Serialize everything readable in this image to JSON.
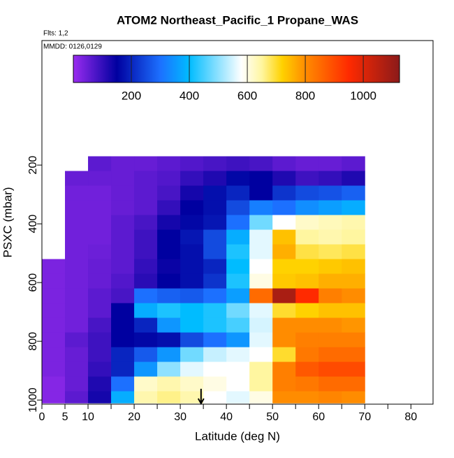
{
  "chart_data": {
    "type": "heatmap",
    "title": "ATOM2 Northeast_Pacific_1 Propane_WAS",
    "subtitle": "Flts: 1,2",
    "annotation": "MMDD: 0126,0129",
    "x_label": "Latitude (deg N)",
    "y_label": "PSXC (mbar)",
    "xlim": [
      0,
      84.8
    ],
    "ylim": [
      1014,
      -224
    ],
    "xticks": [
      0,
      5,
      10,
      20,
      30,
      40,
      50,
      60,
      70,
      80
    ],
    "xminor": [
      15,
      25,
      35,
      45,
      55,
      65,
      75
    ],
    "yticks": [
      200,
      400,
      600,
      800,
      1000
    ],
    "colorbar": {
      "lim": [
        0,
        1125
      ],
      "ticks": [
        200,
        400,
        600,
        800,
        1000
      ]
    },
    "colormap": [
      [
        0,
        "#9a2cf0"
      ],
      [
        150,
        "#0000a0"
      ],
      [
        300,
        "#1c70ff"
      ],
      [
        400,
        "#00bcff"
      ],
      [
        580,
        "#ffffff"
      ],
      [
        650,
        "#fff6a0"
      ],
      [
        720,
        "#ffd200"
      ],
      [
        800,
        "#ff8c00"
      ],
      [
        950,
        "#ff2a00"
      ],
      [
        1125,
        "#8b1a1a"
      ]
    ],
    "lat_edges": [
      0,
      5,
      10,
      15,
      20,
      25,
      30,
      35,
      40,
      45,
      50,
      55,
      60,
      65,
      70
    ],
    "pressure_edges": [
      170,
      220,
      270,
      320,
      370,
      420,
      470,
      520,
      570,
      620,
      670,
      720,
      770,
      820,
      870,
      920,
      970,
      1010
    ],
    "values": [
      [
        null,
        null,
        60,
        50,
        50,
        60,
        70,
        80,
        90,
        80,
        60,
        50,
        50,
        60
      ],
      [
        null,
        50,
        50,
        50,
        60,
        70,
        100,
        120,
        160,
        150,
        120,
        90,
        100,
        120
      ],
      [
        null,
        40,
        40,
        50,
        60,
        80,
        130,
        170,
        200,
        150,
        220,
        250,
        260,
        280
      ],
      [
        null,
        40,
        40,
        50,
        60,
        100,
        150,
        170,
        250,
        320,
        300,
        340,
        360,
        380
      ],
      [
        null,
        40,
        40,
        60,
        80,
        130,
        160,
        180,
        300,
        480,
        580,
        620,
        630,
        640
      ],
      [
        null,
        40,
        40,
        60,
        90,
        150,
        180,
        250,
        380,
        560,
        740,
        650,
        640,
        650
      ],
      [
        null,
        40,
        45,
        60,
        90,
        150,
        170,
        250,
        420,
        560,
        760,
        690,
        680,
        690
      ],
      [
        30,
        40,
        50,
        60,
        100,
        140,
        170,
        200,
        400,
        580,
        720,
        720,
        730,
        740
      ],
      [
        30,
        40,
        50,
        70,
        110,
        150,
        170,
        220,
        420,
        600,
        730,
        740,
        760,
        760
      ],
      [
        30,
        40,
        60,
        80,
        300,
        280,
        270,
        300,
        360,
        850,
        1080,
        950,
        820,
        800
      ],
      [
        30,
        40,
        60,
        150,
        380,
        420,
        400,
        420,
        480,
        560,
        700,
        720,
        740,
        740
      ],
      [
        30,
        40,
        80,
        150,
        200,
        350,
        400,
        420,
        450,
        550,
        800,
        800,
        800,
        790
      ],
      [
        30,
        60,
        90,
        150,
        160,
        170,
        250,
        300,
        350,
        560,
        800,
        820,
        820,
        820
      ],
      [
        30,
        50,
        90,
        200,
        270,
        350,
        480,
        540,
        560,
        580,
        700,
        830,
        850,
        850
      ],
      [
        30,
        50,
        100,
        200,
        350,
        500,
        560,
        580,
        580,
        650,
        820,
        880,
        900,
        900
      ],
      [
        20,
        50,
        120,
        300,
        620,
        640,
        620,
        600,
        580,
        650,
        820,
        830,
        850,
        850
      ],
      [
        20,
        60,
        130,
        380,
        640,
        660,
        640,
        580,
        560,
        600,
        800,
        800,
        810,
        800
      ]
    ],
    "arrow_lat": 34.5
  }
}
